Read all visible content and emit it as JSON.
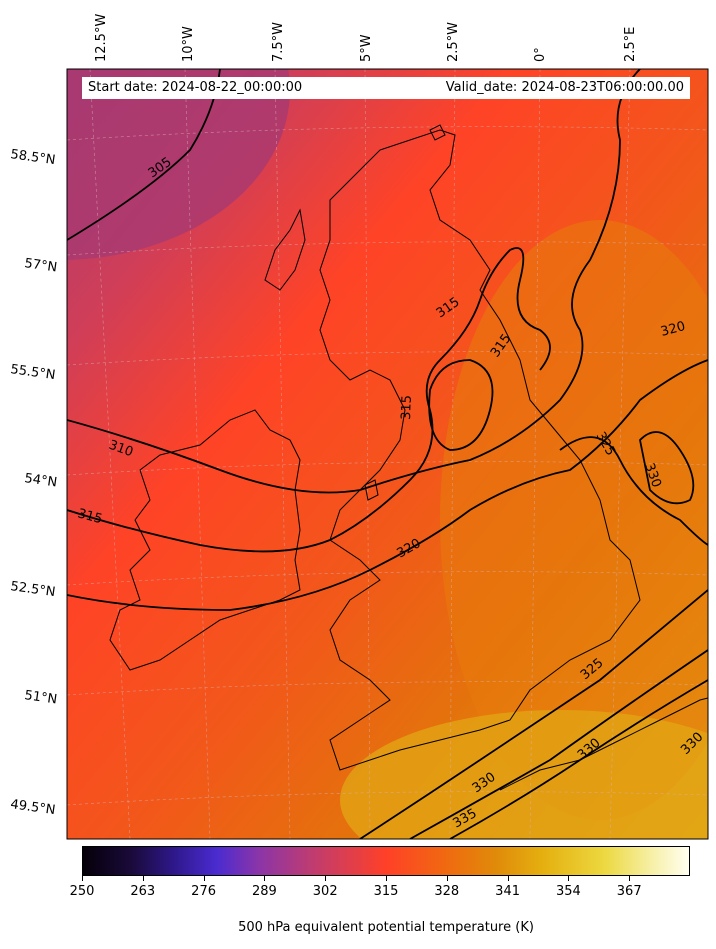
{
  "header": {
    "start_date": "Start date: 2024-08-22_00:00:00",
    "valid_date": "Valid_date: 2024-08-23T06:00:00.00"
  },
  "map": {
    "longitude_labels": [
      "12.5°W",
      "10°W",
      "7.5°W",
      "5°W",
      "2.5°W",
      "0°",
      "2.5°E"
    ],
    "latitude_labels": [
      "58.5°N",
      "57°N",
      "55.5°N",
      "54°N",
      "52.5°N",
      "51°N",
      "49.5°N"
    ],
    "contour_labels": [
      "305",
      "310",
      "315",
      "315",
      "315",
      "315",
      "320",
      "320",
      "325",
      "325",
      "330",
      "330",
      "330",
      "330",
      "335"
    ],
    "colors": {
      "background_cool": "#b03a6a",
      "background_mid": "#ff4326",
      "background_warm": "#e67a0d",
      "background_hot": "#e2a210",
      "contour": "#000000",
      "coastline": "#000000",
      "header_bg": "#ffffff"
    }
  },
  "colorbar": {
    "title": "500 hPa equivalent potential temperature (K)",
    "ticks": [
      "250",
      "263",
      "276",
      "289",
      "302",
      "315",
      "328",
      "341",
      "354",
      "367"
    ]
  }
}
